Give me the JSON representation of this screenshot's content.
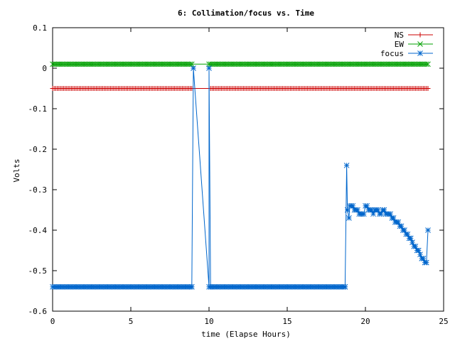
{
  "chart_data": {
    "type": "line",
    "title": "6: Collimation/focus vs. Time",
    "xlabel": "time (Elapse Hours)",
    "ylabel": "Volts",
    "xlim": [
      0,
      25
    ],
    "ylim": [
      -0.6,
      0.1
    ],
    "xticks": [
      0,
      5,
      10,
      15,
      20,
      25
    ],
    "xtick_labels": [
      "0",
      "5",
      "10",
      "15",
      "20",
      "25"
    ],
    "yticks": [
      0.1,
      0,
      -0.1,
      -0.2,
      -0.3,
      -0.4,
      -0.5,
      -0.6
    ],
    "ytick_labels": [
      "0.1",
      "0",
      "-0.1",
      "-0.2",
      "-0.3",
      "-0.4",
      "-0.5",
      "-0.6"
    ],
    "grid": false,
    "legend_position": "top-right",
    "series": [
      {
        "name": "NS",
        "color": "#cc0000",
        "marker": "plus",
        "segments": [
          {
            "x_start": 0,
            "x_end": 8.95,
            "step": 0.1,
            "y": -0.05
          },
          {
            "x_start": 10.0,
            "x_end": 24.0,
            "step": 0.1,
            "y": -0.05
          }
        ]
      },
      {
        "name": "EW",
        "color": "#00a000",
        "marker": "cross",
        "segments": [
          {
            "x_start": 0,
            "x_end": 8.95,
            "step": 0.1,
            "y": 0.01
          },
          {
            "x_start": 10.0,
            "x_end": 24.0,
            "step": 0.1,
            "y": 0.01
          }
        ]
      },
      {
        "name": "focus",
        "color": "#0066cc",
        "marker": "star",
        "segments": [
          {
            "x_start": 0,
            "x_end": 8.9,
            "step": 0.1,
            "y": -0.54
          },
          {
            "x_start": 10.0,
            "x_end": 18.7,
            "step": 0.1,
            "y": -0.54
          }
        ],
        "points": [
          [
            8.9,
            -0.54
          ],
          [
            9.0,
            0.0
          ],
          [
            10.0,
            0.0
          ],
          [
            10.1,
            -0.54
          ],
          [
            18.7,
            -0.54
          ],
          [
            18.8,
            -0.24
          ],
          [
            18.85,
            -0.35
          ],
          [
            18.95,
            -0.37
          ],
          [
            19.0,
            -0.34
          ],
          [
            19.1,
            -0.34
          ],
          [
            19.2,
            -0.34
          ],
          [
            19.3,
            -0.35
          ],
          [
            19.4,
            -0.35
          ],
          [
            19.5,
            -0.35
          ],
          [
            19.6,
            -0.36
          ],
          [
            19.7,
            -0.36
          ],
          [
            19.8,
            -0.36
          ],
          [
            19.9,
            -0.36
          ],
          [
            20.0,
            -0.34
          ],
          [
            20.1,
            -0.34
          ],
          [
            20.2,
            -0.35
          ],
          [
            20.3,
            -0.35
          ],
          [
            20.4,
            -0.35
          ],
          [
            20.5,
            -0.36
          ],
          [
            20.6,
            -0.35
          ],
          [
            20.7,
            -0.35
          ],
          [
            20.8,
            -0.35
          ],
          [
            20.9,
            -0.36
          ],
          [
            21.0,
            -0.36
          ],
          [
            21.1,
            -0.35
          ],
          [
            21.2,
            -0.35
          ],
          [
            21.3,
            -0.36
          ],
          [
            21.4,
            -0.36
          ],
          [
            21.5,
            -0.36
          ],
          [
            21.6,
            -0.36
          ],
          [
            21.7,
            -0.37
          ],
          [
            21.8,
            -0.37
          ],
          [
            21.9,
            -0.38
          ],
          [
            22.0,
            -0.38
          ],
          [
            22.1,
            -0.38
          ],
          [
            22.2,
            -0.39
          ],
          [
            22.3,
            -0.39
          ],
          [
            22.4,
            -0.4
          ],
          [
            22.5,
            -0.4
          ],
          [
            22.6,
            -0.41
          ],
          [
            22.7,
            -0.41
          ],
          [
            22.8,
            -0.42
          ],
          [
            22.9,
            -0.42
          ],
          [
            23.0,
            -0.43
          ],
          [
            23.1,
            -0.44
          ],
          [
            23.2,
            -0.44
          ],
          [
            23.3,
            -0.45
          ],
          [
            23.4,
            -0.45
          ],
          [
            23.5,
            -0.46
          ],
          [
            23.6,
            -0.47
          ],
          [
            23.7,
            -0.47
          ],
          [
            23.8,
            -0.48
          ],
          [
            23.9,
            -0.48
          ],
          [
            24.0,
            -0.4
          ]
        ]
      }
    ]
  }
}
